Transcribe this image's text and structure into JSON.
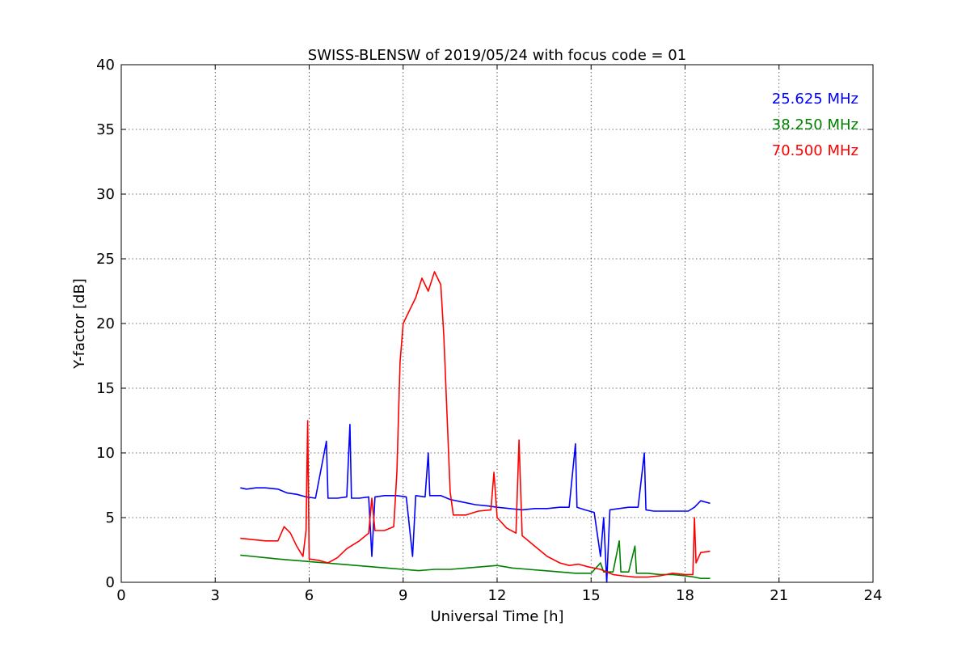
{
  "chart_data": {
    "type": "line",
    "title": "SWISS-BLENSW of 2019/05/24 with focus code = 01",
    "xlabel": "Universal Time [h]",
    "ylabel": "Y-factor [dB]",
    "xlim": [
      0,
      24
    ],
    "ylim": [
      0,
      40
    ],
    "xticks": [
      0,
      3,
      6,
      9,
      12,
      15,
      18,
      21,
      24
    ],
    "yticks": [
      0,
      5,
      10,
      15,
      20,
      25,
      30,
      35,
      40
    ],
    "grid": true,
    "legend_position": "top-right",
    "series": [
      {
        "name": "25.625 MHz",
        "color": "#0000ff",
        "points": [
          [
            3.8,
            7.3
          ],
          [
            4.0,
            7.2
          ],
          [
            4.3,
            7.3
          ],
          [
            4.6,
            7.3
          ],
          [
            5.0,
            7.2
          ],
          [
            5.3,
            6.9
          ],
          [
            5.6,
            6.8
          ],
          [
            5.9,
            6.6
          ],
          [
            6.2,
            6.5
          ],
          [
            6.55,
            10.9
          ],
          [
            6.6,
            6.5
          ],
          [
            6.9,
            6.5
          ],
          [
            7.2,
            6.6
          ],
          [
            7.3,
            12.2
          ],
          [
            7.35,
            6.5
          ],
          [
            7.6,
            6.5
          ],
          [
            7.9,
            6.6
          ],
          [
            8.0,
            2.0
          ],
          [
            8.1,
            6.6
          ],
          [
            8.4,
            6.7
          ],
          [
            8.8,
            6.7
          ],
          [
            9.1,
            6.6
          ],
          [
            9.3,
            2.0
          ],
          [
            9.4,
            6.7
          ],
          [
            9.7,
            6.6
          ],
          [
            9.8,
            10.0
          ],
          [
            9.85,
            6.7
          ],
          [
            10.2,
            6.7
          ],
          [
            10.5,
            6.4
          ],
          [
            10.9,
            6.2
          ],
          [
            11.3,
            6.0
          ],
          [
            11.7,
            5.9
          ],
          [
            12.0,
            5.8
          ],
          [
            12.4,
            5.7
          ],
          [
            12.8,
            5.6
          ],
          [
            13.2,
            5.7
          ],
          [
            13.6,
            5.7
          ],
          [
            14.0,
            5.8
          ],
          [
            14.3,
            5.8
          ],
          [
            14.5,
            10.7
          ],
          [
            14.55,
            5.8
          ],
          [
            14.8,
            5.6
          ],
          [
            15.1,
            5.4
          ],
          [
            15.3,
            2.0
          ],
          [
            15.4,
            5.0
          ],
          [
            15.5,
            0.0
          ],
          [
            15.6,
            5.6
          ],
          [
            15.9,
            5.7
          ],
          [
            16.2,
            5.8
          ],
          [
            16.5,
            5.8
          ],
          [
            16.7,
            10.0
          ],
          [
            16.75,
            5.6
          ],
          [
            17.0,
            5.5
          ],
          [
            17.4,
            5.5
          ],
          [
            17.8,
            5.5
          ],
          [
            18.1,
            5.5
          ],
          [
            18.3,
            5.8
          ],
          [
            18.5,
            6.3
          ],
          [
            18.8,
            6.1
          ]
        ]
      },
      {
        "name": "38.250 MHz",
        "color": "#008000",
        "points": [
          [
            3.8,
            2.1
          ],
          [
            4.2,
            2.0
          ],
          [
            4.6,
            1.9
          ],
          [
            5.0,
            1.8
          ],
          [
            5.5,
            1.7
          ],
          [
            6.0,
            1.6
          ],
          [
            6.5,
            1.5
          ],
          [
            7.0,
            1.4
          ],
          [
            7.5,
            1.3
          ],
          [
            8.0,
            1.2
          ],
          [
            8.5,
            1.1
          ],
          [
            9.0,
            1.0
          ],
          [
            9.5,
            0.9
          ],
          [
            10.0,
            1.0
          ],
          [
            10.5,
            1.0
          ],
          [
            11.0,
            1.1
          ],
          [
            11.5,
            1.2
          ],
          [
            12.0,
            1.3
          ],
          [
            12.5,
            1.1
          ],
          [
            13.0,
            1.0
          ],
          [
            13.5,
            0.9
          ],
          [
            14.0,
            0.8
          ],
          [
            14.5,
            0.7
          ],
          [
            15.0,
            0.7
          ],
          [
            15.3,
            1.5
          ],
          [
            15.4,
            0.8
          ],
          [
            15.7,
            0.8
          ],
          [
            15.9,
            3.2
          ],
          [
            15.95,
            0.8
          ],
          [
            16.2,
            0.8
          ],
          [
            16.4,
            2.8
          ],
          [
            16.45,
            0.7
          ],
          [
            16.8,
            0.7
          ],
          [
            17.2,
            0.6
          ],
          [
            17.6,
            0.6
          ],
          [
            18.0,
            0.5
          ],
          [
            18.3,
            0.4
          ],
          [
            18.5,
            0.3
          ],
          [
            18.8,
            0.3
          ]
        ]
      },
      {
        "name": "70.500 MHz",
        "color": "#ff0000",
        "points": [
          [
            3.8,
            3.4
          ],
          [
            4.2,
            3.3
          ],
          [
            4.6,
            3.2
          ],
          [
            5.0,
            3.2
          ],
          [
            5.2,
            4.3
          ],
          [
            5.4,
            3.8
          ],
          [
            5.6,
            2.8
          ],
          [
            5.8,
            2.0
          ],
          [
            5.9,
            4.0
          ],
          [
            5.95,
            12.5
          ],
          [
            6.0,
            1.8
          ],
          [
            6.3,
            1.7
          ],
          [
            6.6,
            1.5
          ],
          [
            6.9,
            1.9
          ],
          [
            7.2,
            2.6
          ],
          [
            7.6,
            3.2
          ],
          [
            7.9,
            3.8
          ],
          [
            8.0,
            6.5
          ],
          [
            8.1,
            4.0
          ],
          [
            8.4,
            4.0
          ],
          [
            8.7,
            4.3
          ],
          [
            8.8,
            8.5
          ],
          [
            8.9,
            17.0
          ],
          [
            9.0,
            20.0
          ],
          [
            9.2,
            21.0
          ],
          [
            9.4,
            22.0
          ],
          [
            9.6,
            23.5
          ],
          [
            9.8,
            22.5
          ],
          [
            10.0,
            24.0
          ],
          [
            10.2,
            23.0
          ],
          [
            10.3,
            19.0
          ],
          [
            10.4,
            13.0
          ],
          [
            10.5,
            7.0
          ],
          [
            10.6,
            5.2
          ],
          [
            11.0,
            5.2
          ],
          [
            11.4,
            5.5
          ],
          [
            11.8,
            5.6
          ],
          [
            11.9,
            8.5
          ],
          [
            12.0,
            5.0
          ],
          [
            12.3,
            4.2
          ],
          [
            12.6,
            3.8
          ],
          [
            12.7,
            11.0
          ],
          [
            12.8,
            3.6
          ],
          [
            13.2,
            2.8
          ],
          [
            13.6,
            2.0
          ],
          [
            14.0,
            1.5
          ],
          [
            14.3,
            1.3
          ],
          [
            14.6,
            1.4
          ],
          [
            14.9,
            1.2
          ],
          [
            15.3,
            1.0
          ],
          [
            15.7,
            0.6
          ],
          [
            16.0,
            0.5
          ],
          [
            16.4,
            0.4
          ],
          [
            16.8,
            0.4
          ],
          [
            17.2,
            0.5
          ],
          [
            17.6,
            0.7
          ],
          [
            18.0,
            0.6
          ],
          [
            18.25,
            0.6
          ],
          [
            18.3,
            5.0
          ],
          [
            18.35,
            1.5
          ],
          [
            18.5,
            2.3
          ],
          [
            18.8,
            2.4
          ]
        ]
      }
    ]
  }
}
